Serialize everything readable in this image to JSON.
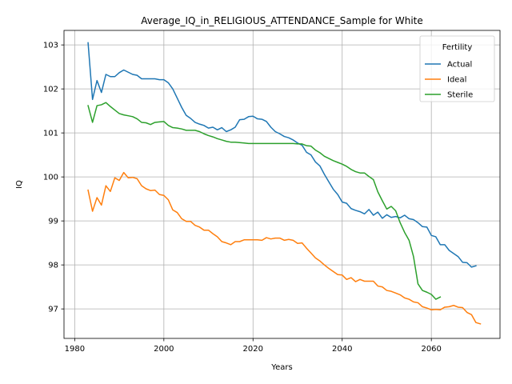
{
  "chart_data": {
    "type": "line",
    "title": "Average_IQ_in_RELIGIOUS_ATTENDANCE_Sample for White",
    "xlabel": "Years",
    "ylabel": "IQ",
    "xlim": [
      1977.6,
      2075.4
    ],
    "ylim": [
      96.33,
      103.33
    ],
    "xticks": [
      1980,
      2000,
      2020,
      2040,
      2060
    ],
    "yticks": [
      97,
      98,
      99,
      100,
      101,
      102,
      103
    ],
    "grid": true,
    "legend": {
      "title": "Fertility",
      "placement": "upper right"
    },
    "series": [
      {
        "name": "Actual",
        "color": "#1f77b4",
        "points": [
          [
            1983,
            103.05
          ],
          [
            1984,
            101.76
          ],
          [
            1985,
            102.19
          ],
          [
            1986,
            101.92
          ],
          [
            1987,
            102.33
          ],
          [
            1988,
            102.28
          ],
          [
            1989,
            102.28
          ],
          [
            1990,
            102.37
          ],
          [
            1991,
            102.43
          ],
          [
            1992,
            102.38
          ],
          [
            1993,
            102.33
          ],
          [
            1994,
            102.31
          ],
          [
            1995,
            102.23
          ],
          [
            1996,
            102.23
          ],
          [
            1997,
            102.23
          ],
          [
            1998,
            102.23
          ],
          [
            1999,
            102.21
          ],
          [
            2000,
            102.21
          ],
          [
            2001,
            102.14
          ],
          [
            2002,
            102.0
          ],
          [
            2003,
            101.79
          ],
          [
            2004,
            101.58
          ],
          [
            2005,
            101.4
          ],
          [
            2006,
            101.33
          ],
          [
            2007,
            101.24
          ],
          [
            2008,
            101.2
          ],
          [
            2009,
            101.17
          ],
          [
            2010,
            101.11
          ],
          [
            2011,
            101.13
          ],
          [
            2012,
            101.07
          ],
          [
            2013,
            101.12
          ],
          [
            2014,
            101.03
          ],
          [
            2015,
            101.07
          ],
          [
            2016,
            101.13
          ],
          [
            2017,
            101.3
          ],
          [
            2018,
            101.31
          ],
          [
            2019,
            101.37
          ],
          [
            2020,
            101.38
          ],
          [
            2021,
            101.32
          ],
          [
            2022,
            101.31
          ],
          [
            2023,
            101.26
          ],
          [
            2024,
            101.13
          ],
          [
            2025,
            101.03
          ],
          [
            2026,
            100.98
          ],
          [
            2027,
            100.92
          ],
          [
            2028,
            100.89
          ],
          [
            2029,
            100.84
          ],
          [
            2030,
            100.77
          ],
          [
            2031,
            100.72
          ],
          [
            2032,
            100.56
          ],
          [
            2033,
            100.5
          ],
          [
            2034,
            100.34
          ],
          [
            2035,
            100.25
          ],
          [
            2036,
            100.06
          ],
          [
            2037,
            99.89
          ],
          [
            2038,
            99.72
          ],
          [
            2039,
            99.6
          ],
          [
            2040,
            99.43
          ],
          [
            2041,
            99.4
          ],
          [
            2042,
            99.28
          ],
          [
            2043,
            99.24
          ],
          [
            2044,
            99.21
          ],
          [
            2045,
            99.16
          ],
          [
            2046,
            99.26
          ],
          [
            2047,
            99.13
          ],
          [
            2048,
            99.2
          ],
          [
            2049,
            99.06
          ],
          [
            2050,
            99.14
          ],
          [
            2051,
            99.08
          ],
          [
            2052,
            99.1
          ],
          [
            2053,
            99.07
          ],
          [
            2054,
            99.13
          ],
          [
            2055,
            99.05
          ],
          [
            2056,
            99.03
          ],
          [
            2057,
            98.96
          ],
          [
            2058,
            98.87
          ],
          [
            2059,
            98.86
          ],
          [
            2060,
            98.67
          ],
          [
            2061,
            98.64
          ],
          [
            2062,
            98.46
          ],
          [
            2063,
            98.46
          ],
          [
            2064,
            98.33
          ],
          [
            2065,
            98.26
          ],
          [
            2066,
            98.19
          ],
          [
            2067,
            98.06
          ],
          [
            2068,
            98.05
          ],
          [
            2069,
            97.95
          ],
          [
            2070,
            97.98
          ]
        ]
      },
      {
        "name": "Ideal",
        "color": "#ff7f0e",
        "points": [
          [
            1983,
            99.7
          ],
          [
            1984,
            99.22
          ],
          [
            1985,
            99.53
          ],
          [
            1986,
            99.36
          ],
          [
            1987,
            99.8
          ],
          [
            1988,
            99.67
          ],
          [
            1989,
            99.98
          ],
          [
            1990,
            99.92
          ],
          [
            1991,
            100.1
          ],
          [
            1992,
            99.98
          ],
          [
            1993,
            99.99
          ],
          [
            1994,
            99.96
          ],
          [
            1995,
            99.8
          ],
          [
            1996,
            99.73
          ],
          [
            1997,
            99.69
          ],
          [
            1998,
            99.7
          ],
          [
            1999,
            99.6
          ],
          [
            2000,
            99.58
          ],
          [
            2001,
            99.48
          ],
          [
            2002,
            99.25
          ],
          [
            2003,
            99.19
          ],
          [
            2004,
            99.05
          ],
          [
            2005,
            98.99
          ],
          [
            2006,
            98.99
          ],
          [
            2007,
            98.9
          ],
          [
            2008,
            98.86
          ],
          [
            2009,
            98.79
          ],
          [
            2010,
            98.79
          ],
          [
            2011,
            98.71
          ],
          [
            2012,
            98.64
          ],
          [
            2013,
            98.53
          ],
          [
            2014,
            98.5
          ],
          [
            2015,
            98.46
          ],
          [
            2016,
            98.53
          ],
          [
            2017,
            98.53
          ],
          [
            2018,
            98.57
          ],
          [
            2019,
            98.57
          ],
          [
            2020,
            98.57
          ],
          [
            2021,
            98.57
          ],
          [
            2022,
            98.56
          ],
          [
            2023,
            98.62
          ],
          [
            2024,
            98.59
          ],
          [
            2025,
            98.61
          ],
          [
            2026,
            98.61
          ],
          [
            2027,
            98.56
          ],
          [
            2028,
            98.58
          ],
          [
            2029,
            98.56
          ],
          [
            2030,
            98.49
          ],
          [
            2031,
            98.5
          ],
          [
            2032,
            98.38
          ],
          [
            2033,
            98.27
          ],
          [
            2034,
            98.16
          ],
          [
            2035,
            98.09
          ],
          [
            2036,
            98.0
          ],
          [
            2037,
            97.92
          ],
          [
            2038,
            97.85
          ],
          [
            2039,
            97.78
          ],
          [
            2040,
            97.77
          ],
          [
            2041,
            97.67
          ],
          [
            2042,
            97.71
          ],
          [
            2043,
            97.62
          ],
          [
            2044,
            97.67
          ],
          [
            2045,
            97.63
          ],
          [
            2046,
            97.63
          ],
          [
            2047,
            97.63
          ],
          [
            2048,
            97.52
          ],
          [
            2049,
            97.5
          ],
          [
            2050,
            97.42
          ],
          [
            2051,
            97.4
          ],
          [
            2052,
            97.36
          ],
          [
            2053,
            97.32
          ],
          [
            2054,
            97.25
          ],
          [
            2055,
            97.22
          ],
          [
            2056,
            97.16
          ],
          [
            2057,
            97.14
          ],
          [
            2058,
            97.05
          ],
          [
            2059,
            97.02
          ],
          [
            2060,
            96.98
          ],
          [
            2061,
            96.99
          ],
          [
            2062,
            96.98
          ],
          [
            2063,
            97.04
          ],
          [
            2064,
            97.05
          ],
          [
            2065,
            97.08
          ],
          [
            2066,
            97.04
          ],
          [
            2067,
            97.03
          ],
          [
            2068,
            96.92
          ],
          [
            2069,
            96.87
          ],
          [
            2070,
            96.69
          ],
          [
            2071,
            96.66
          ]
        ]
      },
      {
        "name": "Sterile",
        "color": "#2ca02c",
        "points": [
          [
            1983,
            101.62
          ],
          [
            1984,
            101.24
          ],
          [
            1985,
            101.62
          ],
          [
            1986,
            101.64
          ],
          [
            1987,
            101.69
          ],
          [
            1988,
            101.6
          ],
          [
            1989,
            101.52
          ],
          [
            1990,
            101.44
          ],
          [
            1991,
            101.41
          ],
          [
            1992,
            101.39
          ],
          [
            1993,
            101.37
          ],
          [
            1994,
            101.32
          ],
          [
            1995,
            101.24
          ],
          [
            1996,
            101.23
          ],
          [
            1997,
            101.19
          ],
          [
            1998,
            101.24
          ],
          [
            1999,
            101.25
          ],
          [
            2000,
            101.26
          ],
          [
            2001,
            101.17
          ],
          [
            2002,
            101.12
          ],
          [
            2003,
            101.11
          ],
          [
            2004,
            101.09
          ],
          [
            2005,
            101.06
          ],
          [
            2006,
            101.06
          ],
          [
            2007,
            101.06
          ],
          [
            2008,
            101.03
          ],
          [
            2009,
            100.98
          ],
          [
            2010,
            100.94
          ],
          [
            2011,
            100.91
          ],
          [
            2012,
            100.87
          ],
          [
            2013,
            100.84
          ],
          [
            2014,
            100.81
          ],
          [
            2015,
            100.79
          ],
          [
            2016,
            100.79
          ],
          [
            2017,
            100.78
          ],
          [
            2018,
            100.77
          ],
          [
            2019,
            100.76
          ],
          [
            2020,
            100.76
          ],
          [
            2021,
            100.76
          ],
          [
            2022,
            100.76
          ],
          [
            2023,
            100.76
          ],
          [
            2024,
            100.76
          ],
          [
            2025,
            100.76
          ],
          [
            2026,
            100.76
          ],
          [
            2027,
            100.76
          ],
          [
            2028,
            100.76
          ],
          [
            2029,
            100.76
          ],
          [
            2030,
            100.75
          ],
          [
            2031,
            100.75
          ],
          [
            2032,
            100.71
          ],
          [
            2033,
            100.7
          ],
          [
            2034,
            100.61
          ],
          [
            2035,
            100.55
          ],
          [
            2036,
            100.47
          ],
          [
            2037,
            100.42
          ],
          [
            2038,
            100.37
          ],
          [
            2039,
            100.33
          ],
          [
            2040,
            100.29
          ],
          [
            2041,
            100.24
          ],
          [
            2042,
            100.17
          ],
          [
            2043,
            100.12
          ],
          [
            2044,
            100.09
          ],
          [
            2045,
            100.09
          ],
          [
            2046,
            100.01
          ],
          [
            2047,
            99.94
          ],
          [
            2048,
            99.66
          ],
          [
            2049,
            99.46
          ],
          [
            2050,
            99.27
          ],
          [
            2051,
            99.33
          ],
          [
            2052,
            99.23
          ],
          [
            2053,
            98.96
          ],
          [
            2054,
            98.74
          ],
          [
            2055,
            98.56
          ],
          [
            2056,
            98.19
          ],
          [
            2057,
            97.57
          ],
          [
            2058,
            97.42
          ],
          [
            2059,
            97.38
          ],
          [
            2060,
            97.33
          ],
          [
            2061,
            97.22
          ],
          [
            2062,
            97.27
          ]
        ]
      }
    ]
  }
}
